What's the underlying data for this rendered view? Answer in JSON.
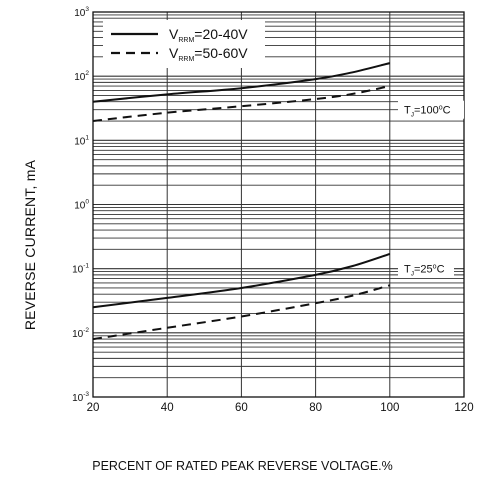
{
  "chart_data": {
    "type": "line",
    "title": "",
    "xlabel": "PERCENT OF RATED PEAK REVERSE VOLTAGE.%",
    "ylabel": "REVERSE CURRENT, mA",
    "xlim": [
      20,
      120
    ],
    "ylim": [
      0.001,
      1000
    ],
    "yscale": "log",
    "x_ticks": [
      "20",
      "40",
      "60",
      "80",
      "100",
      "120"
    ],
    "y_ticks": [
      {
        "base": "10",
        "exp": "-3"
      },
      {
        "base": "10",
        "exp": "-2"
      },
      {
        "base": "10",
        "exp": "-1"
      },
      {
        "base": "10",
        "exp": "0"
      },
      {
        "base": "10",
        "exp": "1"
      },
      {
        "base": "10",
        "exp": "2"
      },
      {
        "base": "10",
        "exp": "3"
      }
    ],
    "grid": true,
    "legend_position": "top-left",
    "x": [
      20,
      40,
      60,
      80,
      90,
      100
    ],
    "series": [
      {
        "name": "V_RRM=20-40V",
        "legend_main": "V",
        "legend_sub": "RRM",
        "legend_value": "=20-40V",
        "style": "solid",
        "condition": "TJ=100°C",
        "values": [
          40,
          52,
          65,
          90,
          115,
          160
        ]
      },
      {
        "name": "V_RRM=50-60V",
        "legend_main": "V",
        "legend_sub": "RRM",
        "legend_value": "=50-60V",
        "style": "dashed",
        "condition": "TJ=100°C",
        "values": [
          20,
          27,
          34,
          44,
          53,
          70
        ]
      },
      {
        "name": "V_RRM=20-40V",
        "style": "solid",
        "condition": "TJ=25°C",
        "values": [
          0.025,
          0.035,
          0.05,
          0.08,
          0.11,
          0.17
        ]
      },
      {
        "name": "V_RRM=50-60V",
        "style": "dashed",
        "condition": "TJ=25°C",
        "values": [
          0.008,
          0.012,
          0.018,
          0.029,
          0.038,
          0.055
        ]
      }
    ],
    "annotations": [
      {
        "main": "T",
        "sub": "J",
        "value": "=100",
        "sup": "o",
        "unit": "C",
        "y": 30
      },
      {
        "main": "T",
        "sub": "J",
        "value": "=25",
        "sup": "o",
        "unit": "C",
        "y": 0.1
      }
    ],
    "colors": {
      "line": "#111111",
      "grid": "#333333",
      "background": "#ffffff"
    }
  }
}
